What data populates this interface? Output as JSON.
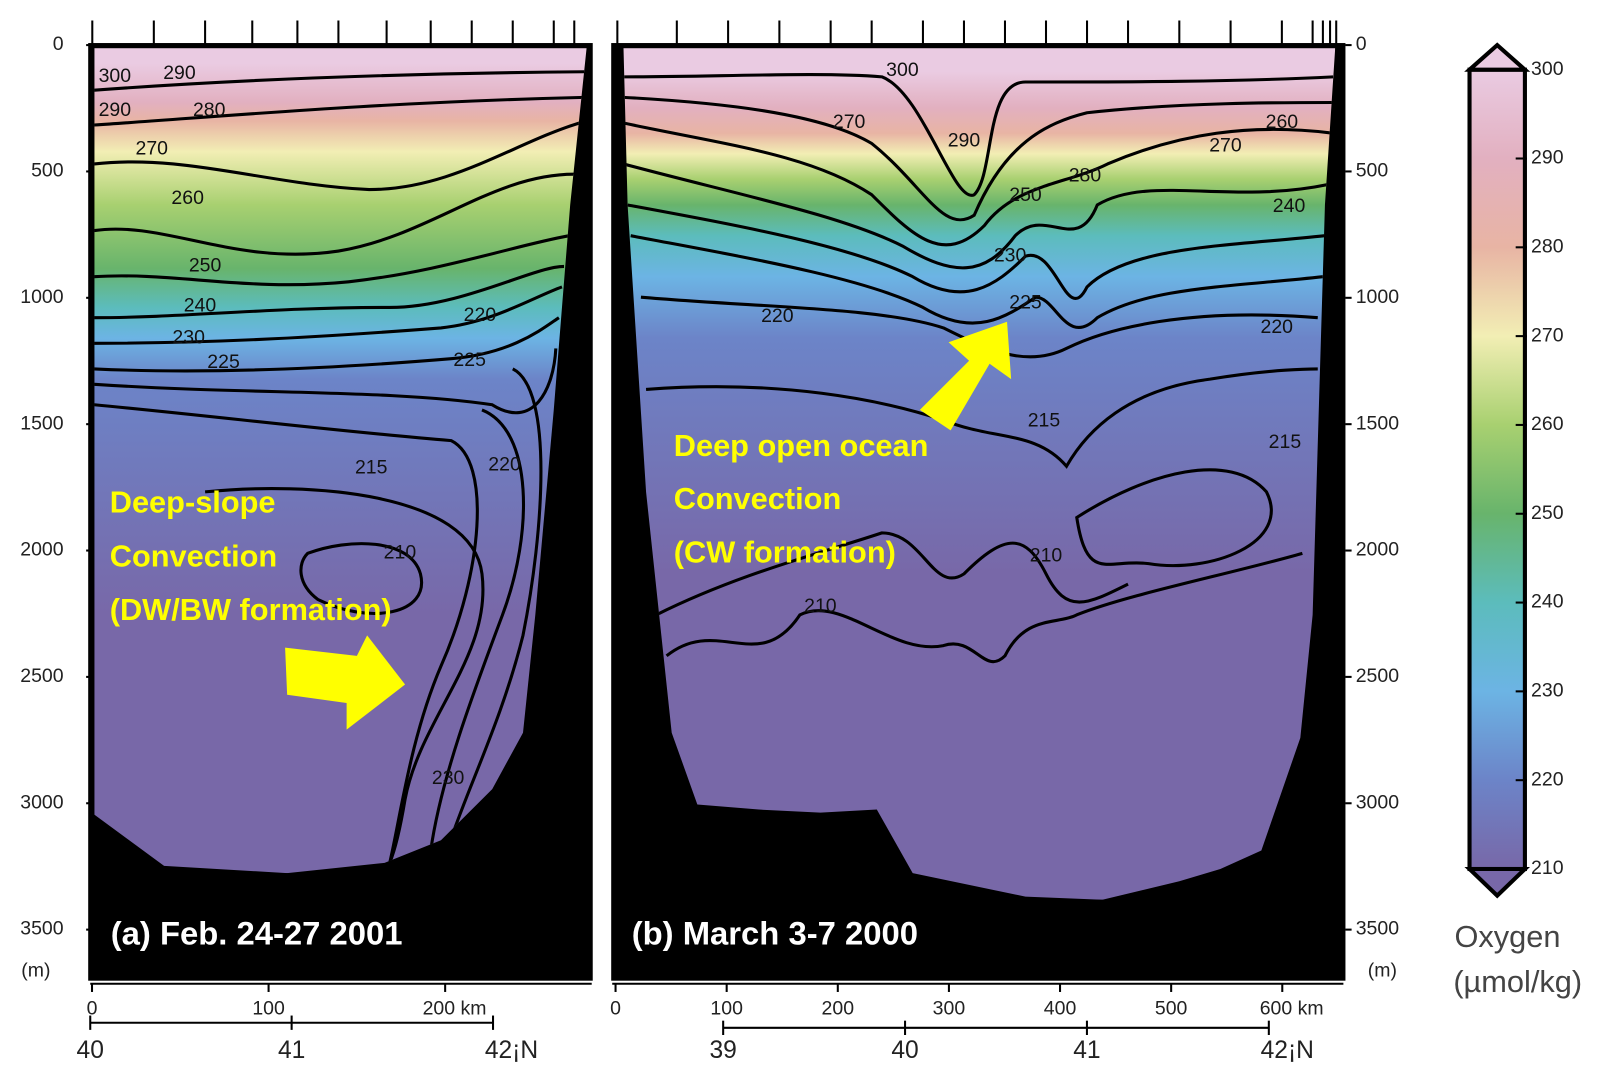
{
  "panels": [
    {
      "type": "contour",
      "label": "(a) Feb. 24-27 2001",
      "annotation": [
        "Deep-slope",
        "Convection",
        "(DW/BW formation)"
      ],
      "ylim": [
        0,
        3694
      ],
      "yticks": [
        0,
        500,
        1000,
        1500,
        2000,
        2500,
        3000,
        3500
      ],
      "y_unit": "(m)",
      "xlim": [
        -1,
        283
      ],
      "xticks": [
        0,
        100,
        {
          "value": 200,
          "label": "200 km"
        }
      ],
      "lat_lim": [
        40,
        42.49
      ],
      "lat_ticks": [
        40,
        41,
        {
          "value": 42,
          "label": "42¡N"
        }
      ],
      "contour_labels": [
        300,
        290,
        290,
        280,
        270,
        260,
        250,
        240,
        230,
        225,
        220,
        225,
        215,
        220,
        210,
        230
      ]
    },
    {
      "type": "contour",
      "label": "(b) March 3-7 2000",
      "annotation": [
        "Deep open ocean",
        "Convection",
        "(CW formation)"
      ],
      "ylim": [
        0,
        3694
      ],
      "yticks": [
        0,
        500,
        1000,
        1500,
        2000,
        2500,
        3000,
        3500
      ],
      "y_unit": "(m)",
      "xlim": [
        -3,
        655
      ],
      "xticks": [
        0,
        100,
        200,
        300,
        400,
        500,
        {
          "value": 600,
          "label": "600 km"
        }
      ],
      "lat_lim": [
        38.39,
        42.41
      ],
      "lat_ticks": [
        39,
        40,
        41,
        {
          "value": 42,
          "label": "42¡N"
        }
      ],
      "contour_labels": [
        300,
        270,
        290,
        280,
        270,
        260,
        250,
        240,
        230,
        225,
        220,
        220,
        215,
        215,
        210,
        210
      ]
    }
  ],
  "colorbar": {
    "lim": [
      210,
      300
    ],
    "ticks": [
      210,
      220,
      230,
      240,
      250,
      260,
      270,
      280,
      290,
      300
    ],
    "colors": [
      "#7868a8",
      "#6c84c8",
      "#6cb4e4",
      "#5cbcbc",
      "#68b46c",
      "#a8d070",
      "#f2eeb4",
      "#e8b4a4",
      "#e2b0c0",
      "#eacbe2"
    ],
    "title": [
      "Oxygen",
      "(µmol/kg)"
    ]
  }
}
